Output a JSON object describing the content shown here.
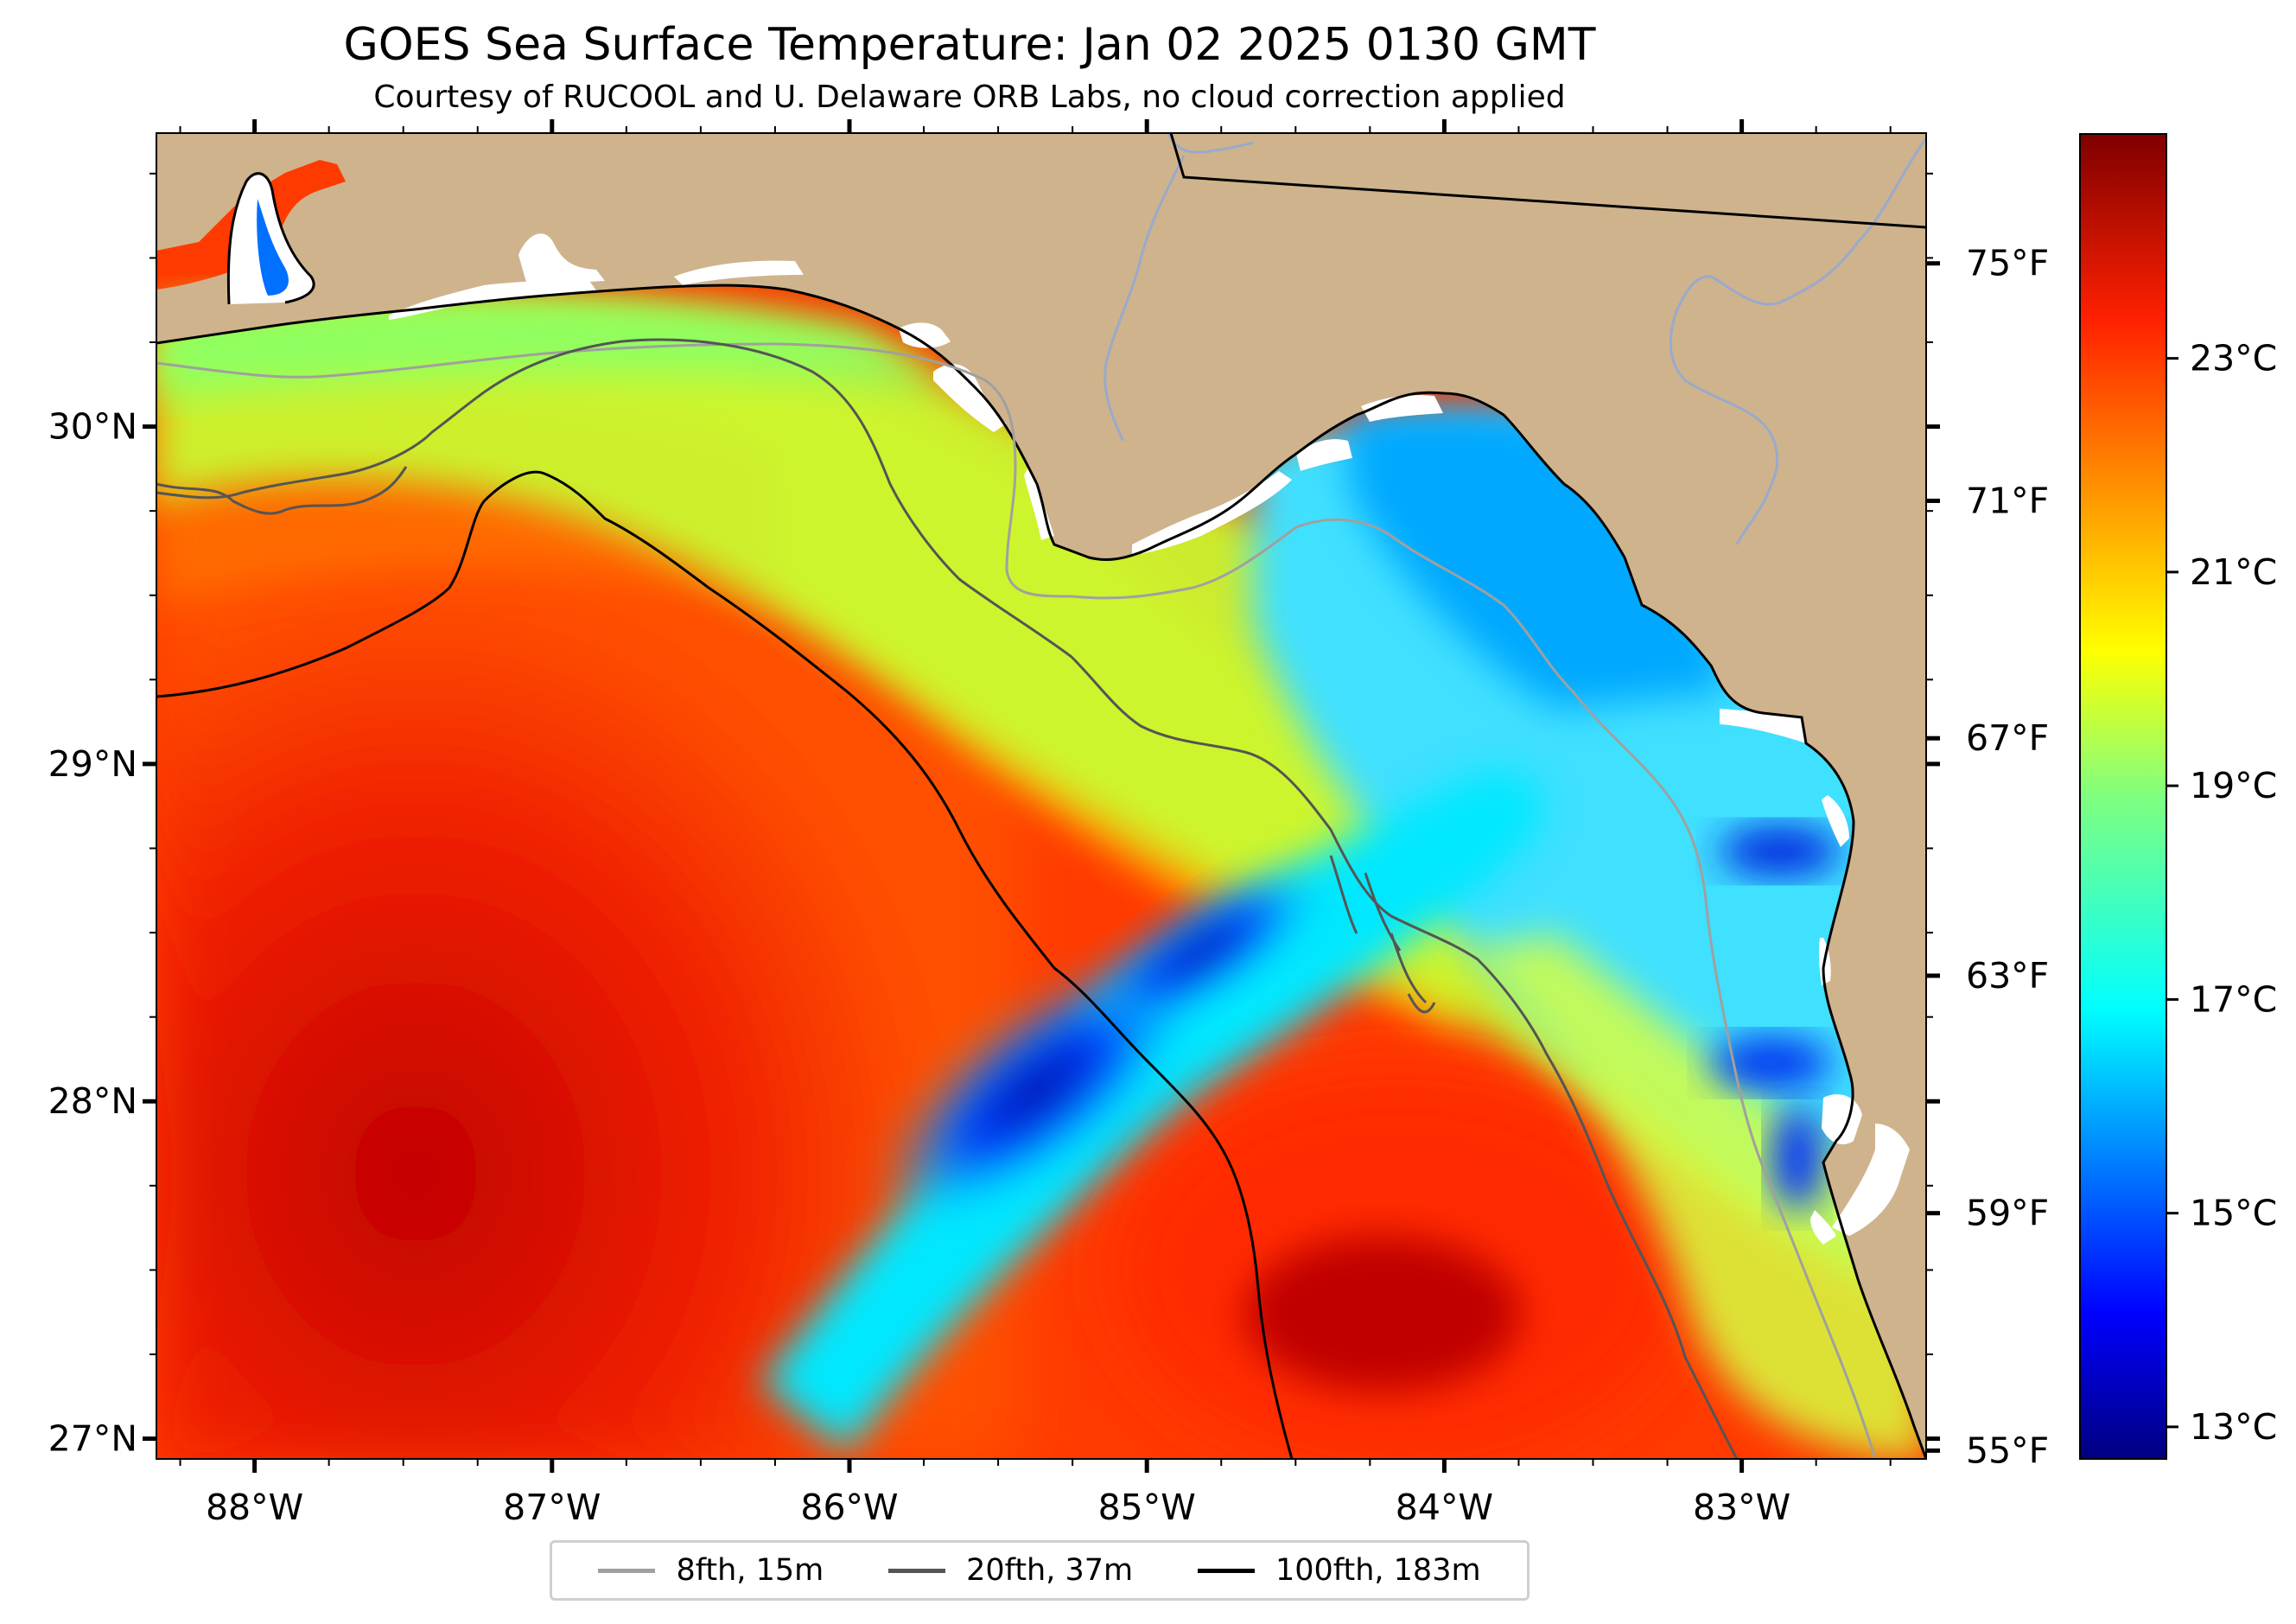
{
  "title": "GOES Sea Surface Temperature: Jan 02 2025 0130 GMT",
  "subtitle": "Courtesy of RUCOOL and U. Delaware ORB Labs, no cloud correction applied",
  "map": {
    "lon_range": [
      -88.33,
      -82.38
    ],
    "lat_range": [
      26.94,
      30.87
    ],
    "longitude_ticks": [
      {
        "value": -88,
        "label": "88°W"
      },
      {
        "value": -87,
        "label": "87°W"
      },
      {
        "value": -86,
        "label": "86°W"
      },
      {
        "value": -85,
        "label": "85°W"
      },
      {
        "value": -84,
        "label": "84°W"
      },
      {
        "value": -83,
        "label": "83°W"
      }
    ],
    "latitude_ticks": [
      {
        "value": 30,
        "label": "30°N"
      },
      {
        "value": 29,
        "label": "29°N"
      },
      {
        "value": 28,
        "label": "28°N"
      },
      {
        "value": 27,
        "label": "27°N"
      }
    ],
    "fahrenheit_ticks": [
      {
        "value": 75,
        "label": "75°F"
      },
      {
        "value": 71,
        "label": "71°F"
      },
      {
        "value": 67,
        "label": "67°F"
      },
      {
        "value": 63,
        "label": "63°F"
      },
      {
        "value": 59,
        "label": "59°F"
      },
      {
        "value": 55,
        "label": "55°F"
      }
    ],
    "land_color": "#cfb38c",
    "water_cold_color": "#0000cc",
    "water_warm_color": "#e01000"
  },
  "colorbar": {
    "range_c": [
      12.7,
      25.1
    ],
    "ticks": [
      {
        "value": 23,
        "label": "23°C"
      },
      {
        "value": 21,
        "label": "21°C"
      },
      {
        "value": 19,
        "label": "19°C"
      },
      {
        "value": 17,
        "label": "17°C"
      },
      {
        "value": 15,
        "label": "15°C"
      },
      {
        "value": 13,
        "label": "13°C"
      }
    ],
    "colormap": "jet"
  },
  "legend": {
    "items": [
      {
        "label": "8fth, 15m",
        "color": "#a0a0a0"
      },
      {
        "label": "20fth, 37m",
        "color": "#555555"
      },
      {
        "label": "100fth, 183m",
        "color": "#000000"
      }
    ]
  }
}
